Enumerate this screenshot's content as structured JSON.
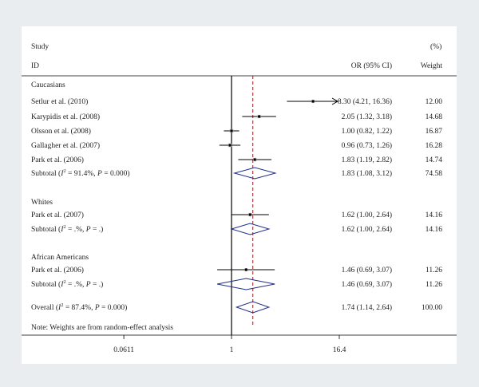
{
  "header": {
    "study_label": "Study",
    "id_label": "ID",
    "or_label": "OR (95% CI)",
    "percent_label": "(%)",
    "weight_label": "Weight"
  },
  "note": "Note: Weights are from random-effect analysis",
  "colors": {
    "line": "#000000",
    "diamond": "#1f2d8a",
    "dashed": "#8b1a1a"
  },
  "chart_data": {
    "type": "forest",
    "x_scale": "log",
    "x_ticks": [
      {
        "value": 0.0611,
        "label": "0.0611"
      },
      {
        "value": 1,
        "label": "1"
      },
      {
        "value": 16.4,
        "label": "16.4"
      }
    ],
    "null_line": 1,
    "overall_effect_line": 1.74,
    "groups": [
      {
        "name": "Caucasians",
        "studies": [
          {
            "id": "Setlur et al. (2010)",
            "or": 8.3,
            "lo": 4.21,
            "hi": 16.36,
            "text": "8.30 (4.21, 16.36)",
            "weight": "12.00",
            "clipped_high": true
          },
          {
            "id": "Karypidis et al. (2008)",
            "or": 2.05,
            "lo": 1.32,
            "hi": 3.18,
            "text": "2.05 (1.32, 3.18)",
            "weight": "14.68"
          },
          {
            "id": "Olsson et al. (2008)",
            "or": 1.0,
            "lo": 0.82,
            "hi": 1.22,
            "text": "1.00 (0.82, 1.22)",
            "weight": "16.87"
          },
          {
            "id": "Gallagher et al. (2007)",
            "or": 0.96,
            "lo": 0.73,
            "hi": 1.26,
            "text": "0.96 (0.73, 1.26)",
            "weight": "16.28"
          },
          {
            "id": "Park et al. (2006)",
            "or": 1.83,
            "lo": 1.19,
            "hi": 2.82,
            "text": "1.83 (1.19, 2.82)",
            "weight": "14.74"
          }
        ],
        "subtotal": {
          "label_pre": "Subtotal (",
          "i2": "91.4%",
          "p": "0.000",
          "or": 1.83,
          "lo": 1.08,
          "hi": 3.12,
          "text": "1.83 (1.08, 3.12)",
          "weight": "74.58"
        }
      },
      {
        "name": "Whites",
        "studies": [
          {
            "id": "Park et al. (2007)",
            "or": 1.62,
            "lo": 1.0,
            "hi": 2.64,
            "text": "1.62 (1.00, 2.64)",
            "weight": "14.16"
          }
        ],
        "subtotal": {
          "label_pre": "Subtotal (",
          "i2": ".%",
          "p": ".",
          "or": 1.62,
          "lo": 1.0,
          "hi": 2.64,
          "text": "1.62 (1.00, 2.64)",
          "weight": "14.16"
        }
      },
      {
        "name": "African Americans",
        "studies": [
          {
            "id": "Park et al. (2006)",
            "or": 1.46,
            "lo": 0.69,
            "hi": 3.07,
            "text": "1.46 (0.69, 3.07)",
            "weight": "11.26"
          }
        ],
        "subtotal": {
          "label_pre": "Subtotal (",
          "i2": ".%",
          "p": ".",
          "or": 1.46,
          "lo": 0.69,
          "hi": 3.07,
          "text": "1.46 (0.69, 3.07)",
          "weight": "11.26"
        }
      }
    ],
    "overall": {
      "label_pre": "Overall (",
      "i2": "87.4%",
      "p": "0.000",
      "or": 1.74,
      "lo": 1.14,
      "hi": 2.64,
      "text": "1.74 (1.14, 2.64)",
      "weight": "100.00"
    }
  }
}
